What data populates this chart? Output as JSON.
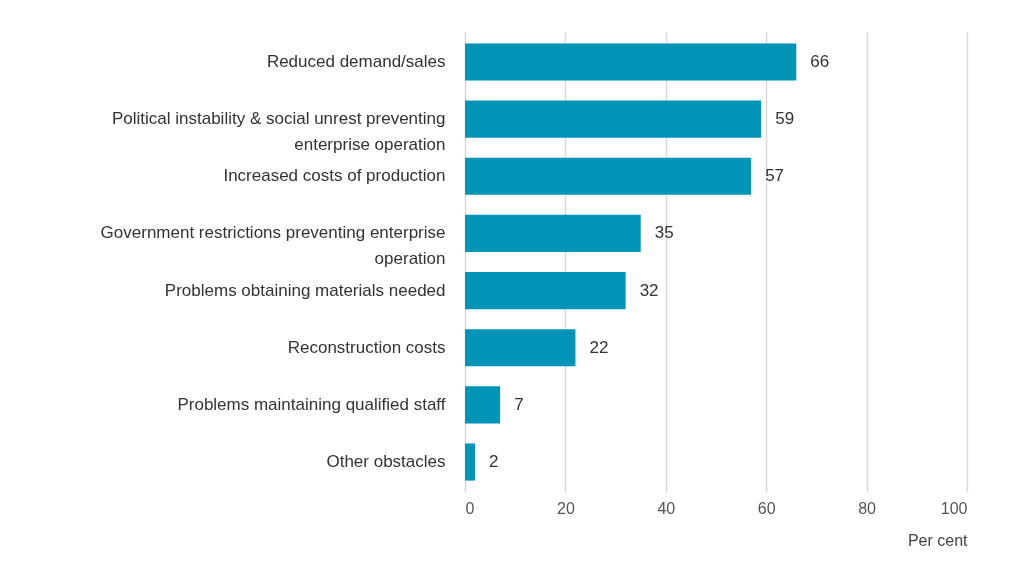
{
  "chart_data": {
    "type": "bar",
    "orientation": "horizontal",
    "xlabel": "Per cent",
    "categories": [
      "Reduced demand/sales",
      "Political instability & social unrest preventing enterprise operation",
      "Increased costs of production",
      "Government restrictions preventing enterprise operation",
      "Problems obtaining materials needed",
      "Reconstruction costs",
      "Problems maintaining qualified staff",
      "Other obstacles"
    ],
    "values": [
      66,
      59,
      57,
      35,
      32,
      22,
      7,
      2
    ],
    "color": "#0095b6",
    "xlim": [
      0,
      100
    ],
    "xticks": [
      0,
      20,
      40,
      60,
      80,
      100
    ],
    "grid": "x",
    "data_labels": true
  }
}
